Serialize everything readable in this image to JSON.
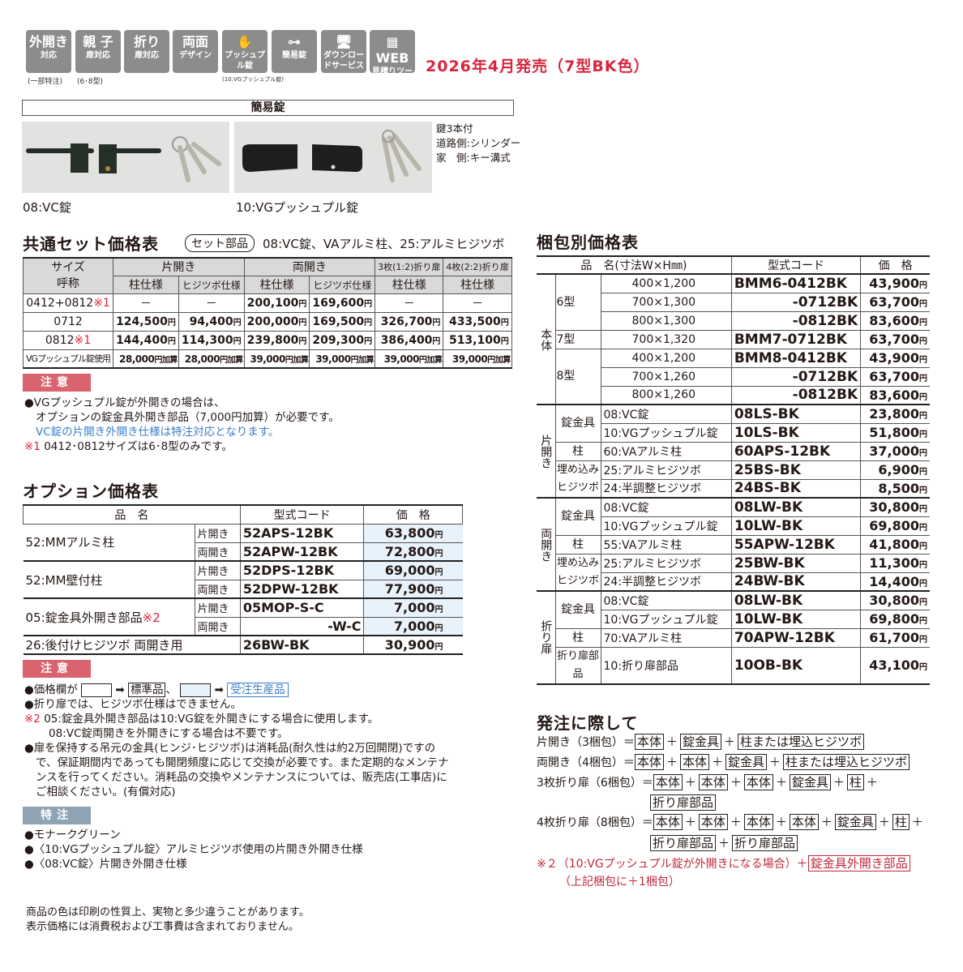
{
  "header": {
    "icons": [
      {
        "icon": "outward-opening-icon",
        "lines": [
          "外開き",
          "対応"
        ],
        "caption": "(一部特注)"
      },
      {
        "icon": "parent-child-door-icon",
        "lines": [
          "親 子",
          "扉対応"
        ],
        "caption": "(6･8型)"
      },
      {
        "icon": "folding-door-icon",
        "lines": [
          "折り",
          "扉対応"
        ],
        "caption": ""
      },
      {
        "icon": "double-sided-design-icon",
        "lines": [
          "両面",
          "デザイン"
        ],
        "caption": ""
      },
      {
        "icon": "push-pull-lock-icon",
        "lines": [
          "✋",
          "プッシュプル錠"
        ],
        "caption": "(10:VGプッシュプル錠)"
      },
      {
        "icon": "simple-lock-key-icon",
        "lines": [
          "⊶",
          "簡易錠"
        ],
        "caption": ""
      },
      {
        "icon": "download-service-icon",
        "lines": [
          "🖥",
          "ダウンロードサービス"
        ],
        "caption": ""
      },
      {
        "icon": "web-estimate-tool-icon",
        "lines": [
          "▦ WEB",
          "見積りツール"
        ],
        "caption": ""
      }
    ],
    "release": "2026年4月発売（7型BK色）"
  },
  "lock_section": {
    "title": "簡易錠",
    "photo1_caption": "08:VC錠",
    "photo2_caption": "10:VGプッシュプル錠",
    "key_notes": [
      "鍵3本付",
      "道路側:シリンダー",
      "家　側:キー溝式"
    ]
  },
  "set_price": {
    "title": "共通セット価格表",
    "set_badge": "セット部品",
    "set_parts": "08:VC錠、VAアルミ柱、25:アルミヒジツボ",
    "head_size": [
      "サイズ",
      "呼称"
    ],
    "groups": [
      "片開き",
      "両開き",
      "3枚(1:2)折り扉",
      "4枚(2:2)折り扉"
    ],
    "subheads": [
      "柱仕様",
      "ヒジツボ仕様",
      "柱仕様",
      "ヒジツボ仕様",
      "柱仕様",
      "柱仕様"
    ],
    "yen": "円",
    "rows": [
      {
        "size": "0412+0812",
        "mark": "※1",
        "values": [
          "－",
          "－",
          "200,100",
          "169,600",
          "－",
          "－"
        ]
      },
      {
        "size": "0712",
        "mark": "",
        "values": [
          "124,500",
          "94,400",
          "200,000",
          "169,500",
          "326,700",
          "433,500"
        ]
      },
      {
        "size": "0812",
        "mark": "※1",
        "values": [
          "144,400",
          "114,300",
          "239,800",
          "209,300",
          "386,400",
          "513,100"
        ]
      },
      {
        "size": "VGプッシュプル錠使用",
        "mark": "",
        "values": [
          "28,000",
          "28,000",
          "39,000",
          "39,000",
          "39,000",
          "39,000"
        ],
        "suffix": "円加算"
      }
    ]
  },
  "caution1": {
    "badge": "注意",
    "lines": [
      "●VGプッシュプル錠が外開きの場合は、",
      "オプションの錠金具外開き部品（7,000円加算）が必要です。"
    ],
    "blue_line": "VC錠の片開き外開き仕様は特注対応となります。",
    "mark": "※1",
    "footnote": "0412･0812サイズは6･8型のみです。"
  },
  "options": {
    "title": "オプション価格表",
    "headers": [
      "品　名",
      "型式コード",
      "価　格"
    ],
    "yen": "円",
    "items": [
      {
        "name": "52:MMアルミ柱",
        "variants": [
          {
            "door": "片開き",
            "code": "52APS-12BK",
            "price": "63,800",
            "std": false
          },
          {
            "door": "両開き",
            "code": "52APW-12BK",
            "price": "72,800",
            "std": false
          }
        ]
      },
      {
        "name": "52:MM壁付柱",
        "variants": [
          {
            "door": "片開き",
            "code": "52DPS-12BK",
            "price": "69,000",
            "std": false
          },
          {
            "door": "両開き",
            "code": "52DPW-12BK",
            "price": "77,900",
            "std": false
          }
        ]
      },
      {
        "name": "05:錠金具外開き部品",
        "mark": "※2",
        "variants": [
          {
            "door": "片開き",
            "code": "05MOP-S-C",
            "price": "7,000",
            "std": false
          },
          {
            "door": "両開き",
            "code": "-W-C",
            "price": "7,000",
            "std": false
          }
        ]
      },
      {
        "name": "26:後付けヒジツボ 両開き用",
        "variants": [
          {
            "door": "",
            "code": "26BW-BK",
            "price": "30,900",
            "std": true
          }
        ]
      }
    ]
  },
  "caution2": {
    "badge": "注意",
    "legend_prefix": "●価格欄が",
    "arrow": "➡",
    "standard": "標準品",
    "sep": "、",
    "made_to_order": "受注生産品",
    "line2": "●折り扉では、ヒジツボ仕様はできません。",
    "mark": "※2",
    "line3a": "05:錠金具外開き部品は10:VG錠を外開きにする場合に使用します。",
    "line3b": "08:VC錠両開きを外開きにする場合は不要です。",
    "line4": [
      "●扉を保持する吊元の金具(ヒンジ･ヒジツボ)は消耗品(耐久性は約2万回開閉)ですの",
      "で、保証期間内であっても開閉頻度に応じて交換が必要です。また定期的なメンテナ",
      "ンスを行ってください。消耗品の交換やメンテナンスについては、販売店(工事店)に",
      "ご相談ください。(有償対応)"
    ]
  },
  "special": {
    "badge": "特注",
    "lines": [
      "●モナークグリーン",
      "●〈10:VGプッシュプル錠〉アルミヒジツボ使用の片開き外開き仕様",
      "●〈08:VC錠〉片開き外開き仕様"
    ]
  },
  "footer": [
    "商品の色は印刷の性質上、実物と多少違うことがあります。",
    "表示価格には消費税および工事費は含まれておりません。"
  ],
  "package_price": {
    "title": "梱包別価格表",
    "headers": [
      "品　名(寸法W×H㎜)",
      "型式コード",
      "価　格"
    ],
    "yen": "円",
    "groups": [
      {
        "label": "本体",
        "subgroups": [
          {
            "label": "6型",
            "items": [
              {
                "name": "400×1,200",
                "code": "BMM6-0412BK",
                "price": "43,900"
              },
              {
                "name": "700×1,300",
                "code": "-0712BK",
                "price": "63,700"
              },
              {
                "name": "800×1,300",
                "code": "-0812BK",
                "price": "83,600"
              }
            ]
          },
          {
            "label": "7型",
            "items": [
              {
                "name": "700×1,320",
                "code": "BMM7-0712BK",
                "price": "63,700"
              }
            ]
          },
          {
            "label": "8型",
            "items": [
              {
                "name": "400×1,200",
                "code": "BMM8-0412BK",
                "price": "43,900"
              },
              {
                "name": "700×1,260",
                "code": "-0712BK",
                "price": "63,700"
              },
              {
                "name": "800×1,260",
                "code": "-0812BK",
                "price": "83,600"
              }
            ]
          }
        ]
      },
      {
        "label": "片開き",
        "subgroups": [
          {
            "label": "錠金具",
            "items": [
              {
                "name": "08:VC錠",
                "code": "08LS-BK",
                "price": "23,800"
              },
              {
                "name": "10:VGプッシュプル錠",
                "code": "10LS-BK",
                "price": "51,800"
              }
            ]
          },
          {
            "label": "柱",
            "items": [
              {
                "name": "60:VAアルミ柱",
                "code": "60APS-12BK",
                "price": "37,000"
              }
            ]
          },
          {
            "label": "埋め込みヒジツボ",
            "items": [
              {
                "name": "25:アルミヒジツボ",
                "code": "25BS-BK",
                "price": "6,900"
              },
              {
                "name": "24:半調整ヒジツボ",
                "code": "24BS-BK",
                "price": "8,500"
              }
            ]
          }
        ]
      },
      {
        "label": "両開き",
        "subgroups": [
          {
            "label": "錠金具",
            "items": [
              {
                "name": "08:VC錠",
                "code": "08LW-BK",
                "price": "30,800"
              },
              {
                "name": "10:VGプッシュプル錠",
                "code": "10LW-BK",
                "price": "69,800"
              }
            ]
          },
          {
            "label": "柱",
            "items": [
              {
                "name": "55:VAアルミ柱",
                "code": "55APW-12BK",
                "price": "41,800"
              }
            ]
          },
          {
            "label": "埋め込みヒジツボ",
            "items": [
              {
                "name": "25:アルミヒジツボ",
                "code": "25BW-BK",
                "price": "11,300"
              },
              {
                "name": "24:半調整ヒジツボ",
                "code": "24BW-BK",
                "price": "14,400"
              }
            ]
          }
        ]
      },
      {
        "label": "折り扉",
        "subgroups": [
          {
            "label": "錠金具",
            "items": [
              {
                "name": "08:VC錠",
                "code": "08LW-BK",
                "price": "30,800"
              },
              {
                "name": "10:VGプッシュプル錠",
                "code": "10LW-BK",
                "price": "69,800"
              }
            ]
          },
          {
            "label": "柱",
            "items": [
              {
                "name": "70:VAアルミ柱",
                "code": "70APW-12BK",
                "price": "61,700"
              }
            ]
          },
          {
            "label": "折り扉部品",
            "items": [
              {
                "name": "10:折り扉部品",
                "code": "10OB-BK",
                "price": "43,100"
              }
            ]
          }
        ]
      }
    ]
  },
  "ordering": {
    "title": "発注に際して",
    "plus": "＋",
    "lines": [
      {
        "label": "片開き（3梱包）＝",
        "boxes": [
          "本体",
          "錠金具",
          "柱または埋込ヒジツボ"
        ],
        "trail": false
      },
      {
        "label": "両開き（4梱包）＝",
        "boxes": [
          "本体",
          "本体",
          "錠金具",
          "柱または埋込ヒジツボ"
        ],
        "trail": false
      },
      {
        "label": "3枚折り扉（6梱包）＝",
        "boxes": [
          "本体",
          "本体",
          "本体",
          "錠金具",
          "柱"
        ],
        "trail": true
      },
      {
        "label": "",
        "boxes": [
          "折り扉部品"
        ],
        "trail": false
      },
      {
        "label": "4枚折り扉（8梱包）＝",
        "boxes": [
          "本体",
          "本体",
          "本体",
          "本体",
          "錠金具",
          "柱"
        ],
        "trail": true
      },
      {
        "label": "",
        "boxes": [
          "折り扉部品",
          "折り扉部品"
        ],
        "trail": false
      }
    ],
    "note_prefix": "※２（10:VGプッシュプル錠が外開きになる場合）＋",
    "note_box": "錠金具外開き部品",
    "note_sub": "（上記梱包に＋1梱包）"
  },
  "colors": {
    "accent_red": "#d7263d",
    "caution": "#d9636f",
    "special": "#8fa3b3",
    "made_to_order_fill": "#e8f2fb"
  }
}
